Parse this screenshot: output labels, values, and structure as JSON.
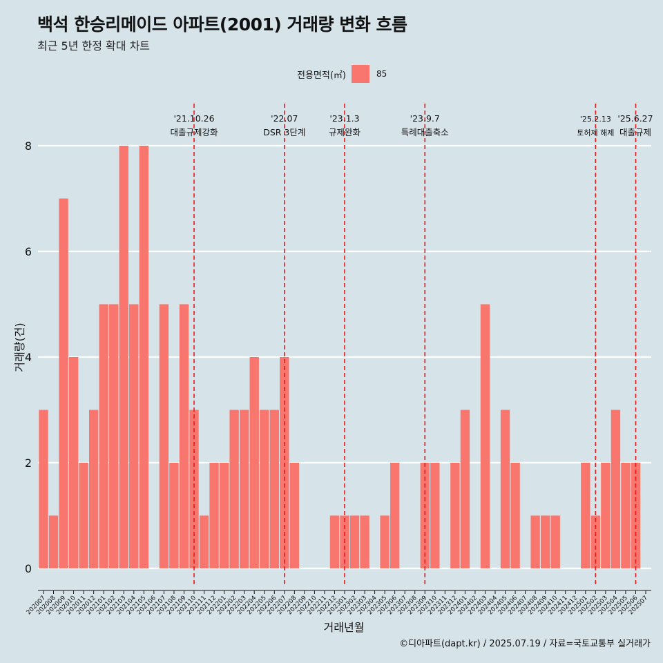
{
  "title": "백석 한승리메이드 아파트(2001) 거래량 변화 흐름",
  "subtitle": "최근 5년 한정 확대 차트",
  "legend": {
    "title": "전용면적(㎡)",
    "item": "85"
  },
  "caption": "©디아파트(dapt.kr) / 2025.07.19 / 자료=국토교통부 실거래가",
  "colors": {
    "bar": "#f8766d",
    "background": "#d6e4ea",
    "event_line": "#e8191b",
    "grid": "#ffffff"
  },
  "chart_data": {
    "type": "bar",
    "xlabel": "거래년월",
    "ylabel": "거래량(건)",
    "ylim": [
      0,
      8
    ],
    "yticks": [
      0,
      2,
      4,
      6,
      8
    ],
    "grid": true,
    "legend_position": "top",
    "series": [
      {
        "name": "85"
      }
    ],
    "categories": [
      "202007",
      "202008",
      "202009",
      "202010",
      "202011",
      "202012",
      "202101",
      "202102",
      "202103",
      "202104",
      "202105",
      "202106",
      "202107",
      "202108",
      "202109",
      "202110",
      "202111",
      "202112",
      "202201",
      "202202",
      "202203",
      "202204",
      "202205",
      "202206",
      "202207",
      "202208",
      "202209",
      "202210",
      "202211",
      "202212",
      "202301",
      "202302",
      "202303",
      "202304",
      "202305",
      "202306",
      "202307",
      "202308",
      "202309",
      "202310",
      "202311",
      "202312",
      "202401",
      "202402",
      "202403",
      "202404",
      "202405",
      "202406",
      "202407",
      "202408",
      "202409",
      "202410",
      "202411",
      "202412",
      "202501",
      "202502",
      "202503",
      "202504",
      "202505",
      "202506",
      "202507"
    ],
    "values": [
      3,
      1,
      7,
      4,
      2,
      3,
      5,
      5,
      8,
      5,
      8,
      0,
      5,
      2,
      5,
      3,
      1,
      2,
      2,
      3,
      3,
      4,
      3,
      3,
      4,
      2,
      0,
      0,
      0,
      1,
      1,
      1,
      1,
      0,
      1,
      2,
      0,
      0,
      2,
      2,
      0,
      2,
      3,
      0,
      5,
      0,
      3,
      2,
      0,
      1,
      1,
      1,
      0,
      0,
      2,
      1,
      2,
      3,
      2,
      2,
      0
    ],
    "events": [
      {
        "date": "'21.10.26",
        "label": "대출규제강화",
        "month": "202110"
      },
      {
        "date": "'22.07",
        "label": "DSR 3단계",
        "month": "202207"
      },
      {
        "date": "'23.1.3",
        "label": "규제완화",
        "month": "202301"
      },
      {
        "date": "'23.9.7",
        "label": "특례대출축소",
        "month": "202309"
      },
      {
        "date": "'25.2.13",
        "label": "토허제 해제",
        "month": "202502"
      },
      {
        "date": "'25.6.27",
        "label": "대출규제",
        "month": "202506"
      }
    ]
  }
}
